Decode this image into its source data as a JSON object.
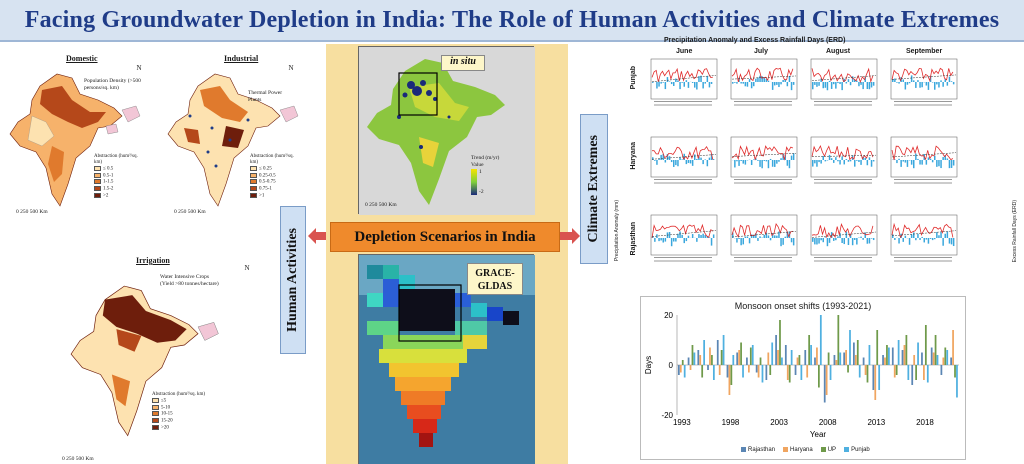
{
  "title": "Facing Groundwater Depletion in India: The Role of Human Activities and Climate Extremes",
  "left": {
    "domestic": {
      "title": "Domestic",
      "note": "Population Density (>500 persons/sq. km)",
      "legend_title": "Abstraction (hum³/sq. km)",
      "legend": [
        "≤ 0.5",
        "0.5-1",
        "1-1.5",
        "1.5-2",
        ">2"
      ],
      "colors": [
        "#fde2b0",
        "#f6b26b",
        "#e07a2d",
        "#b5481a",
        "#6e1e0c"
      ],
      "scale": "0  250  500",
      "scale_unit": "Km"
    },
    "industrial": {
      "title": "Industrial",
      "note": "Thermal Power Plants",
      "legend_title": "Abstraction (hum³/sq. km)",
      "legend": [
        "≤ 0.25",
        "0.25-0.5",
        "0.5-0.75",
        "0.75-1",
        ">1"
      ],
      "colors": [
        "#fde2b0",
        "#f6b26b",
        "#e07a2d",
        "#b5481a",
        "#6e1e0c"
      ],
      "scale": "0  250  500",
      "scale_unit": "Km"
    },
    "irrigation": {
      "title": "Irrigation",
      "note": "Water Intensive Crops (Yield >80 tonnes/hectare)",
      "legend_title": "Abstraction (hum³/sq. km)",
      "legend": [
        "≤5",
        "5-10",
        "10-15",
        "15-20",
        ">20"
      ],
      "colors": [
        "#fde2b0",
        "#f6b26b",
        "#e07a2d",
        "#b5481a",
        "#6e1e0c"
      ],
      "scale": "0  250  500",
      "scale_unit": "Km"
    },
    "north": "N"
  },
  "center": {
    "insitu_label": "in situ",
    "trend_title": "Trend (m/yr)",
    "trend_value_label": "Value",
    "trend_max": "1",
    "trend_min": "-2",
    "scale": "0  250  500",
    "scale_unit": "Km",
    "grace_label": "GRACE-GLDAS",
    "scenario_label": "Depletion Scenarios in India"
  },
  "side_boxes": {
    "human": "Human Activities",
    "climate": "Climate Extremes"
  },
  "rain_panel": {
    "title": "Precipitation Anomaly and Excess Rainfall Days (ERD)",
    "months": [
      "June",
      "July",
      "August",
      "September"
    ],
    "states": [
      "Punjab",
      "Haryana",
      "Rajasthan"
    ],
    "left_axis": "Precipitation Anomaly (mm)",
    "right_axis": "Excess Rainfall Days (ERD)",
    "colors": {
      "anomaly": "#3aa7dd",
      "erd": "#e02b2b"
    }
  },
  "chart_data": {
    "type": "bar",
    "title": "Monsoon onset shifts (1993-2021)",
    "xlabel": "Year",
    "ylabel": "Days",
    "ylim": [
      -20,
      20
    ],
    "yticks": [
      -20,
      0,
      20
    ],
    "x": [
      1993,
      1994,
      1995,
      1996,
      1997,
      1998,
      1999,
      2000,
      2001,
      2002,
      2003,
      2004,
      2005,
      2006,
      2007,
      2008,
      2009,
      2010,
      2011,
      2012,
      2013,
      2014,
      2015,
      2016,
      2017,
      2018,
      2019,
      2020,
      2021
    ],
    "xticks": [
      1993,
      1998,
      2003,
      2008,
      2013,
      2018
    ],
    "series": [
      {
        "name": "Rajasthan",
        "color": "#5b86b4",
        "values": [
          -4,
          3,
          6,
          -2,
          10,
          -5,
          5,
          3,
          -3,
          -6,
          12,
          8,
          -4,
          6,
          3,
          -15,
          4,
          5,
          9,
          3,
          -10,
          4,
          7,
          6,
          -8,
          5,
          7,
          -4,
          3
        ]
      },
      {
        "name": "Haryana",
        "color": "#f0a560",
        "values": [
          -3,
          -2,
          4,
          7,
          -4,
          -12,
          6,
          -3,
          -5,
          5,
          6,
          -6,
          3,
          -5,
          7,
          -12,
          2,
          6,
          4,
          -4,
          -14,
          3,
          -5,
          8,
          4,
          -6,
          5,
          3,
          14
        ]
      },
      {
        "name": "UP",
        "color": "#6f9a4a",
        "values": [
          2,
          8,
          -5,
          4,
          6,
          -8,
          9,
          7,
          3,
          -4,
          18,
          -7,
          4,
          12,
          -9,
          5,
          20,
          -3,
          10,
          -7,
          14,
          8,
          -4,
          12,
          -6,
          16,
          12,
          7,
          -5
        ]
      },
      {
        "name": "Punjab",
        "color": "#4fb0e0",
        "values": [
          -5,
          5,
          10,
          -6,
          12,
          4,
          -5,
          8,
          -7,
          9,
          3,
          6,
          -6,
          8,
          20,
          -6,
          5,
          14,
          -5,
          8,
          -10,
          7,
          10,
          -6,
          9,
          -7,
          4,
          6,
          -13
        ]
      }
    ]
  }
}
